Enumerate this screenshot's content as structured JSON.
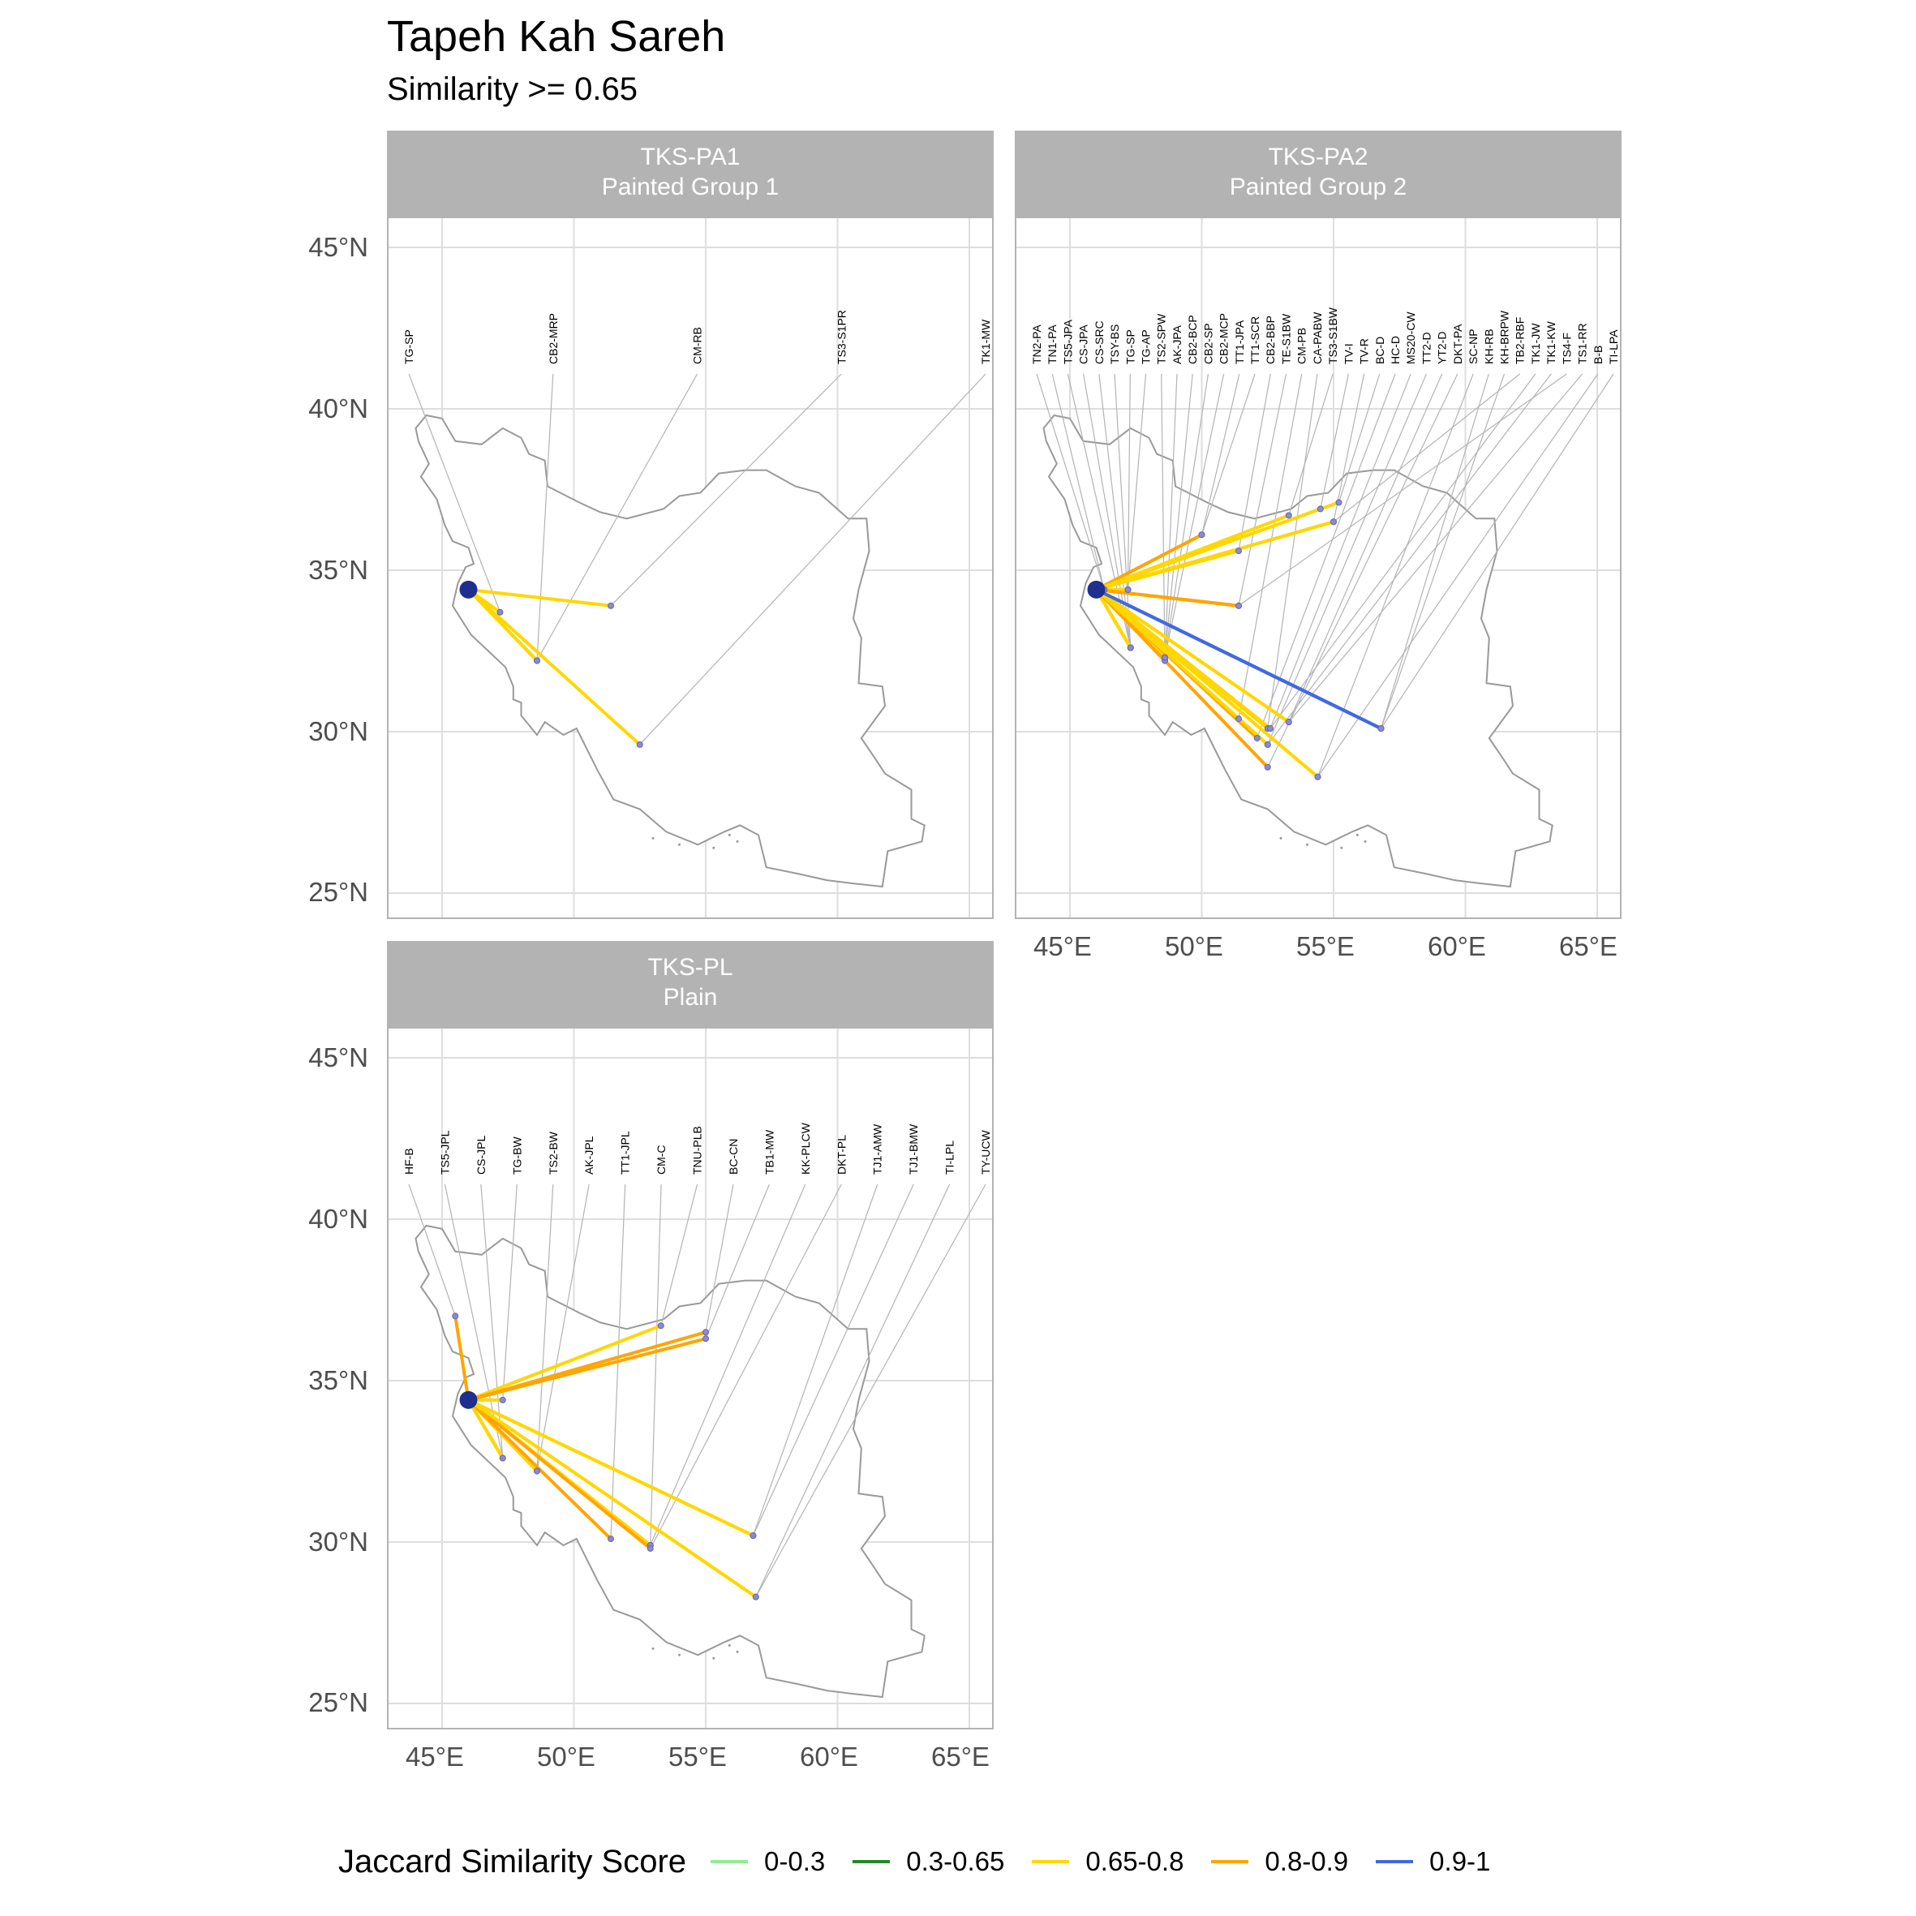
{
  "title": "Tapeh Kah Sareh",
  "subtitle": "Similarity >= 0.65",
  "axis": {
    "x_ticks": [
      "45°E",
      "50°E",
      "55°E",
      "60°E",
      "65°E"
    ],
    "y_ticks": [
      "25°N",
      "30°N",
      "35°N",
      "40°N",
      "45°N"
    ],
    "x_values": [
      45,
      50,
      55,
      60,
      65
    ],
    "y_values": [
      25,
      30,
      35,
      40,
      45
    ]
  },
  "legend": {
    "title": "Jaccard Similarity Score",
    "items": [
      {
        "label": "0-0.3",
        "color": "#90ee90"
      },
      {
        "label": "0.3-0.65",
        "color": "#228b22"
      },
      {
        "label": "0.65-0.8",
        "color": "#ffd700"
      },
      {
        "label": "0.8-0.9",
        "color": "#ffa500"
      },
      {
        "label": "0.9-1",
        "color": "#4169e1"
      }
    ]
  },
  "panels": [
    {
      "code": "TKS-PA1",
      "name": "Painted Group 1"
    },
    {
      "code": "TKS-PA2",
      "name": "Painted Group 2"
    },
    {
      "code": "TKS-PL",
      "name": "Plain"
    }
  ],
  "chart_data": {
    "type": "map",
    "origin": {
      "name": "Tapeh Kah Sareh",
      "lon": 46.0,
      "lat": 34.4
    },
    "panels": [
      {
        "panel": "TKS-PA1",
        "links": [
          {
            "label": "TG-SP",
            "lon": 47.2,
            "lat": 33.7,
            "score": "0.65-0.8"
          },
          {
            "label": "CB2-MRP",
            "lon": 48.6,
            "lat": 32.2,
            "score": "0.65-0.8"
          },
          {
            "label": "CM-RB",
            "lon": 48.6,
            "lat": 32.2,
            "score": "0.65-0.8"
          },
          {
            "label": "TS3-S1PR",
            "lon": 51.4,
            "lat": 33.9,
            "score": "0.65-0.8"
          },
          {
            "label": "TK1-MW",
            "lon": 52.5,
            "lat": 29.6,
            "score": "0.65-0.8"
          }
        ]
      },
      {
        "panel": "TKS-PA2",
        "links": [
          {
            "label": "TN2-PA",
            "lon": 46.3,
            "lat": 34.4,
            "score": "0.8-0.9"
          },
          {
            "label": "TN1-PA",
            "lon": 46.3,
            "lat": 34.4,
            "score": "0.8-0.9"
          },
          {
            "label": "TS5-JPA",
            "lon": 47.3,
            "lat": 32.6,
            "score": "0.65-0.8"
          },
          {
            "label": "CS-JPA",
            "lon": 47.3,
            "lat": 32.6,
            "score": "0.65-0.8"
          },
          {
            "label": "CS-SRC",
            "lon": 47.3,
            "lat": 32.6,
            "score": "0.65-0.8"
          },
          {
            "label": "TSY-BS",
            "lon": 47.3,
            "lat": 32.6,
            "score": "0.65-0.8"
          },
          {
            "label": "TG-SP",
            "lon": 47.2,
            "lat": 34.4,
            "score": "0.65-0.8"
          },
          {
            "label": "TG-AP",
            "lon": 47.2,
            "lat": 34.4,
            "score": "0.65-0.8"
          },
          {
            "label": "TS2-SPW",
            "lon": 48.6,
            "lat": 32.2,
            "score": "0.65-0.8"
          },
          {
            "label": "AK-JPA",
            "lon": 48.6,
            "lat": 32.2,
            "score": "0.8-0.9"
          },
          {
            "label": "CB2-BCP",
            "lon": 48.6,
            "lat": 32.3,
            "score": "0.65-0.8"
          },
          {
            "label": "CB2-SP",
            "lon": 48.6,
            "lat": 32.3,
            "score": "0.65-0.8"
          },
          {
            "label": "CB2-MCP",
            "lon": 48.6,
            "lat": 32.3,
            "score": "0.65-0.8"
          },
          {
            "label": "TT1-JPA",
            "lon": 50.0,
            "lat": 36.1,
            "score": "0.65-0.8"
          },
          {
            "label": "TT1-SCR",
            "lon": 50.0,
            "lat": 36.1,
            "score": "0.8-0.9"
          },
          {
            "label": "CB2-BBP",
            "lon": 51.4,
            "lat": 35.6,
            "score": "0.65-0.8"
          },
          {
            "label": "TE-S1BW",
            "lon": 51.4,
            "lat": 33.9,
            "score": "0.8-0.9"
          },
          {
            "label": "CM-PB",
            "lon": 51.4,
            "lat": 30.4,
            "score": "0.65-0.8"
          },
          {
            "label": "CA-PABW",
            "lon": 52.5,
            "lat": 30.1,
            "score": "0.65-0.8"
          },
          {
            "label": "TS3-S1BW",
            "lon": 53.3,
            "lat": 36.7,
            "score": "0.65-0.8"
          },
          {
            "label": "TV-I",
            "lon": 54.5,
            "lat": 36.9,
            "score": "0.65-0.8"
          },
          {
            "label": "TV-R",
            "lon": 55.0,
            "lat": 36.5,
            "score": "0.8-0.9"
          },
          {
            "label": "BC-D",
            "lon": 55.2,
            "lat": 37.1,
            "score": "0.65-0.8"
          },
          {
            "label": "HC-D",
            "lon": 52.1,
            "lat": 29.8,
            "score": "0.8-0.9"
          },
          {
            "label": "MS20-CW",
            "lon": 52.6,
            "lat": 30.1,
            "score": "0.8-0.9"
          },
          {
            "label": "TT2-D",
            "lon": 52.5,
            "lat": 29.6,
            "score": "0.65-0.8"
          },
          {
            "label": "YT2-D",
            "lon": 53.3,
            "lat": 30.3,
            "score": "0.65-0.8"
          },
          {
            "label": "DKT-PA",
            "lon": 52.5,
            "lat": 28.9,
            "score": "0.8-0.9"
          },
          {
            "label": "SC-NP",
            "lon": 54.4,
            "lat": 28.6,
            "score": "0.65-0.8"
          },
          {
            "label": "KH-RB",
            "lon": 56.8,
            "lat": 30.1,
            "score": "0.9-1"
          },
          {
            "label": "KH-BRPW",
            "lon": 56.8,
            "lat": 30.1,
            "score": "0.9-1"
          },
          {
            "label": "TB2-RBF",
            "lon": 55.0,
            "lat": 36.5,
            "score": "0.65-0.8"
          },
          {
            "label": "TK1-JW",
            "lon": 52.6,
            "lat": 30.1,
            "score": "0.65-0.8"
          },
          {
            "label": "TK1-KW",
            "lon": 52.5,
            "lat": 29.6,
            "score": "0.65-0.8"
          },
          {
            "label": "TS4-F",
            "lon": 51.4,
            "lat": 33.9,
            "score": "0.8-0.9"
          },
          {
            "label": "TS1-RR",
            "lon": 53.3,
            "lat": 30.3,
            "score": "0.65-0.8"
          },
          {
            "label": "B-B",
            "lon": 54.4,
            "lat": 28.6,
            "score": "0.65-0.8"
          },
          {
            "label": "TI-LPA",
            "lon": 56.8,
            "lat": 30.1,
            "score": "0.9-1"
          }
        ]
      },
      {
        "panel": "TKS-PL",
        "links": [
          {
            "label": "HF-B",
            "lon": 45.5,
            "lat": 37.0,
            "score": "0.8-0.9"
          },
          {
            "label": "TS5-JPL",
            "lon": 47.3,
            "lat": 32.6,
            "score": "0.8-0.9"
          },
          {
            "label": "CS-JPL",
            "lon": 47.3,
            "lat": 32.6,
            "score": "0.65-0.8"
          },
          {
            "label": "TG-BW",
            "lon": 47.3,
            "lat": 34.4,
            "score": "0.65-0.8"
          },
          {
            "label": "TS2-BW",
            "lon": 48.6,
            "lat": 32.2,
            "score": "0.8-0.9"
          },
          {
            "label": "AK-JPL",
            "lon": 48.6,
            "lat": 32.2,
            "score": "0.65-0.8"
          },
          {
            "label": "TT1-JPL",
            "lon": 51.4,
            "lat": 30.1,
            "score": "0.8-0.9"
          },
          {
            "label": "CM-C",
            "lon": 52.9,
            "lat": 29.9,
            "score": "0.65-0.8"
          },
          {
            "label": "TNU-PLB",
            "lon": 53.3,
            "lat": 36.7,
            "score": "0.65-0.8"
          },
          {
            "label": "BC-CN",
            "lon": 55.0,
            "lat": 36.5,
            "score": "0.8-0.9"
          },
          {
            "label": "TB1-MW",
            "lon": 55.0,
            "lat": 36.3,
            "score": "0.8-0.9"
          },
          {
            "label": "KK-PLCW",
            "lon": 52.9,
            "lat": 29.9,
            "score": "0.65-0.8"
          },
          {
            "label": "DKT-PL",
            "lon": 52.9,
            "lat": 29.8,
            "score": "0.8-0.9"
          },
          {
            "label": "TJ1-AMW",
            "lon": 56.8,
            "lat": 30.2,
            "score": "0.65-0.8"
          },
          {
            "label": "TJ1-BMW",
            "lon": 56.8,
            "lat": 30.2,
            "score": "0.65-0.8"
          },
          {
            "label": "TI-LPL",
            "lon": 56.9,
            "lat": 28.3,
            "score": "0.65-0.8"
          },
          {
            "label": "TY-UCW",
            "lon": 56.9,
            "lat": 28.3,
            "score": "0.65-0.8"
          }
        ]
      }
    ]
  }
}
